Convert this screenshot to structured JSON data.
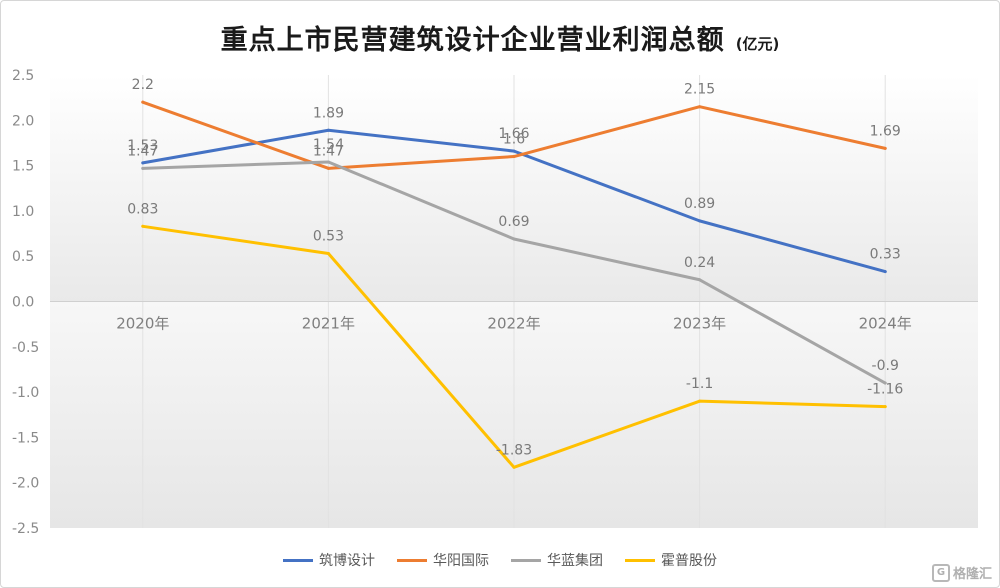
{
  "header": {
    "title": "重点上市民营建筑设计企业营业利润总额",
    "unit": "(亿元)"
  },
  "chart_data": {
    "type": "line",
    "categories": [
      "2020年",
      "2021年",
      "2022年",
      "2023年",
      "2024年"
    ],
    "ylim": [
      -2.5,
      2.5
    ],
    "yticks": [
      "2.5",
      "2.0",
      "1.5",
      "1.0",
      "0.5",
      "0.0",
      "-0.5",
      "-1.0",
      "-1.5",
      "-2.0",
      "-2.5"
    ],
    "ytick_values": [
      2.5,
      2.0,
      1.5,
      1.0,
      0.5,
      0.0,
      -0.5,
      -1.0,
      -1.5,
      -2.0,
      -2.5
    ],
    "grid": "vertical",
    "legend_position": "bottom",
    "series": [
      {
        "name": "筑博设计",
        "color": "#4472C4",
        "values": [
          1.53,
          1.89,
          1.66,
          0.89,
          0.33
        ],
        "labels": [
          "1.53",
          "1.89",
          "1.66",
          "0.89",
          "0.33"
        ]
      },
      {
        "name": "华阳国际",
        "color": "#ED7D31",
        "values": [
          2.2,
          1.47,
          1.6,
          2.15,
          1.69
        ],
        "labels": [
          "2.2",
          "1.47",
          "1.6",
          "2.15",
          "1.69"
        ]
      },
      {
        "name": "华蓝集团",
        "color": "#A5A5A5",
        "values": [
          1.47,
          1.54,
          0.69,
          0.24,
          -0.9
        ],
        "labels": [
          "1.47",
          "1.54",
          "0.69",
          "0.24",
          "-0.9"
        ]
      },
      {
        "name": "霍普股份",
        "color": "#FFC000",
        "values": [
          0.83,
          0.53,
          -1.83,
          -1.1,
          -1.16
        ],
        "labels": [
          "0.83",
          "0.53",
          "-1.83",
          "-1.1",
          "-1.16"
        ]
      }
    ]
  },
  "watermark": {
    "text": "格隆汇",
    "icon": "G"
  }
}
